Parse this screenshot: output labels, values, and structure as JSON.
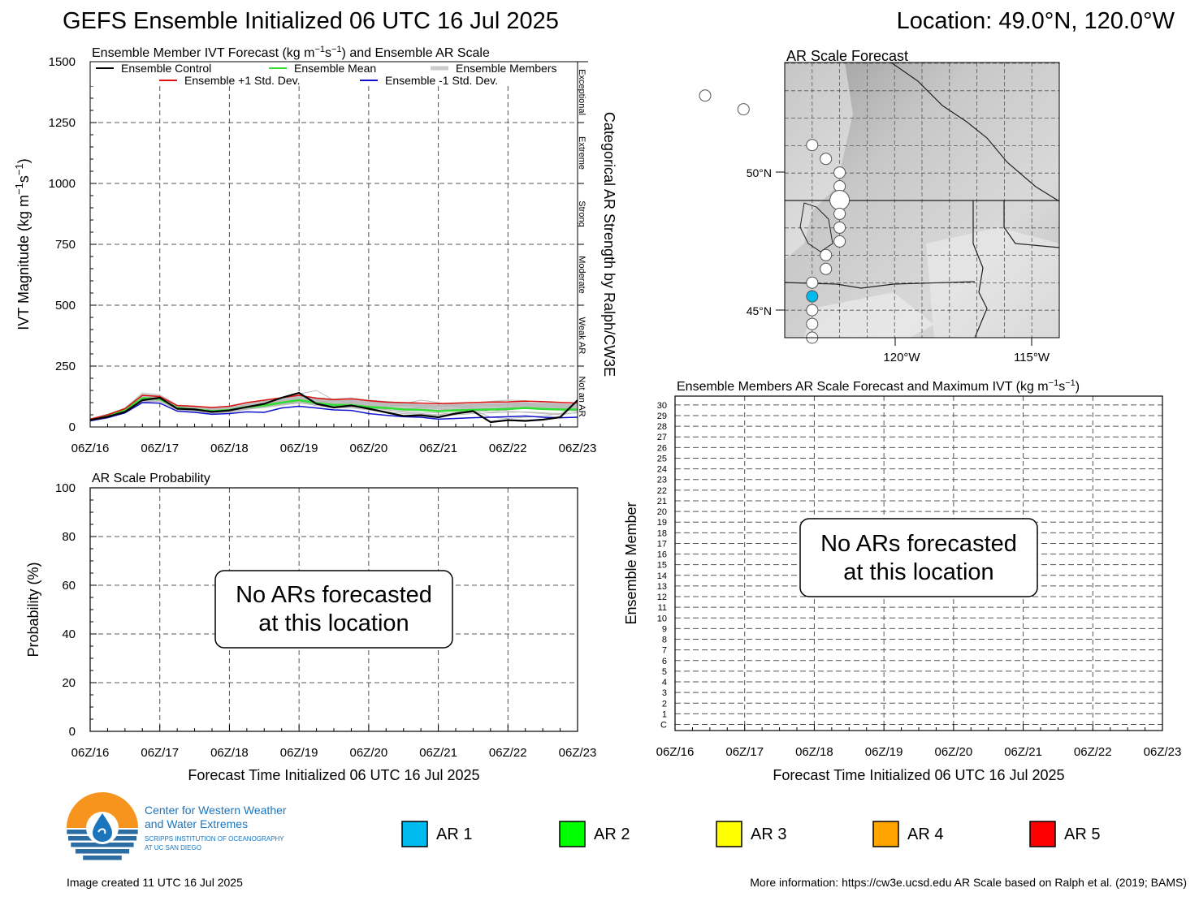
{
  "header": {
    "title": "GEFS Ensemble Initialized 06 UTC 16 Jul 2025",
    "location": "Location: 49.0°N, 120.0°W"
  },
  "x_tick_labels": [
    "06Z/16",
    "06Z/17",
    "06Z/18",
    "06Z/19",
    "06Z/20",
    "06Z/21",
    "06Z/22",
    "06Z/23"
  ],
  "xlabel": "Forecast Time Initialized 06 UTC 16 Jul 2025",
  "no_ar_message": [
    "No ARs forecasted",
    "at this location"
  ],
  "chart_data": [
    {
      "id": "ivt",
      "type": "line",
      "title_parts": [
        "Ensemble Member IVT Forecast (kg m",
        "−1",
        "s",
        "−1",
        ") and Ensemble AR Scale"
      ],
      "ylabel_parts": [
        "IVT Magnitude (kg m",
        "−1",
        "s",
        "−1",
        ")"
      ],
      "ylim": [
        0,
        1500
      ],
      "yticks": [
        0,
        250,
        500,
        750,
        1000,
        1250,
        1500
      ],
      "xlim": [
        0,
        168
      ],
      "grid": true,
      "legend": [
        {
          "label": "Ensemble Control",
          "color": "#000000"
        },
        {
          "label": "Ensemble Mean",
          "color": "#33dd33"
        },
        {
          "label": "Ensemble Members",
          "color": "#bbbbbb"
        },
        {
          "label": "Ensemble +1 Std. Dev.",
          "color": "#dd1111"
        },
        {
          "label": "Ensemble -1 Std. Dev.",
          "color": "#1111cc"
        }
      ],
      "categories_right": {
        "title": "Categorical AR Strength by Ralph/CW3E",
        "bands": [
          {
            "label": "Not an AR",
            "range": [
              0,
              250
            ]
          },
          {
            "label": "Weak AR",
            "range": [
              250,
              500
            ]
          },
          {
            "label": "Moderate",
            "range": [
              500,
              750
            ]
          },
          {
            "label": "Strong",
            "range": [
              750,
              1000
            ]
          },
          {
            "label": "Extreme",
            "range": [
              1000,
              1250
            ]
          },
          {
            "label": "Exceptional",
            "range": [
              1250,
              1500
            ]
          }
        ]
      },
      "x": [
        0,
        6,
        12,
        18,
        24,
        30,
        36,
        42,
        48,
        54,
        60,
        66,
        72,
        78,
        84,
        90,
        96,
        102,
        108,
        114,
        120,
        126,
        132,
        138,
        144,
        150,
        156,
        162,
        168
      ],
      "series": [
        {
          "name": "Ensemble Control",
          "color": "#000000",
          "width": 2.2,
          "values": [
            28,
            42,
            62,
            110,
            120,
            75,
            72,
            62,
            68,
            82,
            95,
            120,
            140,
            95,
            80,
            88,
            75,
            60,
            45,
            48,
            40,
            55,
            65,
            20,
            28,
            25,
            30,
            40,
            110
          ]
        },
        {
          "name": "Ensemble Mean",
          "color": "#33dd33",
          "width": 2.6,
          "values": [
            30,
            45,
            68,
            118,
            115,
            78,
            72,
            65,
            70,
            82,
            88,
            100,
            110,
            98,
            90,
            90,
            82,
            78,
            72,
            70,
            65,
            68,
            70,
            72,
            74,
            78,
            74,
            72,
            72
          ]
        },
        {
          "name": "Ensemble +1 Std. Dev.",
          "color": "#dd1111",
          "width": 1.5,
          "values": [
            32,
            50,
            75,
            130,
            125,
            88,
            85,
            80,
            85,
            100,
            110,
            120,
            130,
            118,
            112,
            115,
            108,
            102,
            100,
            98,
            96,
            98,
            100,
            102,
            103,
            106,
            104,
            101,
            98
          ]
        },
        {
          "name": "Ensemble -1 Std. Dev.",
          "color": "#1111cc",
          "width": 1.5,
          "values": [
            25,
            38,
            58,
            100,
            98,
            65,
            60,
            52,
            55,
            62,
            60,
            78,
            85,
            78,
            70,
            68,
            55,
            48,
            42,
            40,
            32,
            35,
            38,
            40,
            42,
            45,
            40,
            38,
            40
          ]
        }
      ],
      "members": {
        "color": "#bbbbbb",
        "values": [
          [
            27,
            40,
            60,
            108,
            112,
            72,
            70,
            60,
            66,
            80,
            92,
            118,
            135,
            150,
            110,
            95,
            80,
            72,
            60,
            55,
            50,
            60,
            70,
            40,
            35,
            40,
            45,
            55,
            90
          ],
          [
            30,
            44,
            66,
            115,
            118,
            80,
            74,
            66,
            72,
            85,
            90,
            105,
            125,
            100,
            95,
            100,
            95,
            90,
            85,
            80,
            75,
            70,
            68,
            70,
            80,
            90,
            85,
            80,
            75
          ],
          [
            29,
            46,
            70,
            120,
            122,
            78,
            76,
            70,
            74,
            88,
            95,
            108,
            118,
            110,
            100,
            92,
            88,
            85,
            95,
            110,
            100,
            85,
            75,
            60,
            70,
            80,
            75,
            70,
            65
          ],
          [
            31,
            42,
            64,
            112,
            115,
            76,
            70,
            62,
            68,
            78,
            86,
            96,
            105,
            95,
            88,
            85,
            78,
            70,
            65,
            60,
            58,
            55,
            60,
            70,
            65,
            60,
            55,
            50,
            60
          ],
          [
            28,
            48,
            72,
            125,
            120,
            82,
            78,
            72,
            78,
            90,
            100,
            112,
            130,
            120,
            115,
            120,
            110,
            105,
            98,
            92,
            90,
            95,
            100,
            105,
            110,
            108,
            100,
            95,
            92
          ],
          [
            26,
            40,
            58,
            104,
            108,
            70,
            66,
            58,
            62,
            74,
            82,
            92,
            100,
            88,
            80,
            78,
            70,
            62,
            55,
            52,
            48,
            50,
            55,
            58,
            60,
            62,
            58,
            55,
            58
          ],
          [
            32,
            50,
            74,
            130,
            128,
            86,
            82,
            76,
            82,
            96,
            104,
            114,
            122,
            112,
            105,
            110,
            102,
            96,
            90,
            86,
            82,
            84,
            88,
            92,
            95,
            96,
            92,
            88,
            85
          ],
          [
            29,
            44,
            66,
            116,
            114,
            77,
            72,
            66,
            70,
            84,
            92,
            104,
            115,
            105,
            98,
            100,
            95,
            92,
            88,
            85,
            82,
            80,
            78,
            76,
            80,
            85,
            82,
            78,
            76
          ],
          [
            30,
            47,
            68,
            122,
            118,
            80,
            76,
            68,
            74,
            86,
            94,
            106,
            112,
            104,
            96,
            94,
            90,
            88,
            86,
            84,
            80,
            82,
            84,
            86,
            88,
            90,
            86,
            84,
            82
          ],
          [
            28,
            43,
            63,
            110,
            112,
            74,
            70,
            62,
            66,
            80,
            88,
            98,
            108,
            100,
            92,
            90,
            86,
            82,
            80,
            78,
            74,
            76,
            78,
            80,
            82,
            84,
            80,
            78,
            76
          ],
          [
            31,
            49,
            72,
            128,
            124,
            84,
            80,
            74,
            80,
            92,
            100,
            110,
            120,
            112,
            106,
            104,
            100,
            96,
            92,
            88,
            86,
            88,
            90,
            92,
            94,
            96,
            92,
            90,
            88
          ],
          [
            27,
            41,
            61,
            106,
            110,
            73,
            68,
            60,
            64,
            76,
            84,
            94,
            102,
            96,
            88,
            86,
            82,
            78,
            76,
            74,
            70,
            72,
            74,
            76,
            78,
            80,
            76,
            74,
            72
          ],
          [
            33,
            52,
            78,
            140,
            132,
            90,
            86,
            80,
            86,
            100,
            108,
            118,
            128,
            118,
            110,
            108,
            104,
            100,
            96,
            92,
            90,
            92,
            94,
            96,
            98,
            100,
            96,
            94,
            92
          ],
          [
            26,
            39,
            57,
            102,
            106,
            70,
            65,
            56,
            60,
            72,
            80,
            90,
            98,
            92,
            84,
            82,
            78,
            74,
            72,
            70,
            66,
            68,
            70,
            72,
            74,
            76,
            72,
            70,
            68
          ],
          [
            30,
            46,
            69,
            120,
            116,
            79,
            75,
            68,
            73,
            86,
            94,
            106,
            116,
            108,
            100,
            100,
            95,
            92,
            90,
            88,
            85,
            86,
            88,
            90,
            92,
            94,
            90,
            88,
            86
          ],
          [
            29,
            45,
            67,
            118,
            117,
            78,
            73,
            67,
            71,
            84,
            92,
            104,
            114,
            106,
            98,
            98,
            93,
            90,
            88,
            86,
            83,
            84,
            86,
            88,
            90,
            92,
            88,
            86,
            84
          ],
          [
            28,
            42,
            62,
            112,
            113,
            75,
            71,
            63,
            67,
            80,
            88,
            100,
            110,
            102,
            94,
            94,
            89,
            86,
            84,
            82,
            79,
            80,
            82,
            84,
            86,
            88,
            84,
            82,
            80
          ],
          [
            32,
            51,
            76,
            134,
            128,
            88,
            84,
            78,
            84,
            98,
            106,
            116,
            126,
            116,
            108,
            106,
            102,
            98,
            94,
            90,
            88,
            90,
            92,
            94,
            96,
            98,
            94,
            92,
            90
          ],
          [
            27,
            40,
            59,
            105,
            109,
            72,
            67,
            59,
            63,
            75,
            83,
            93,
            101,
            95,
            87,
            85,
            81,
            77,
            75,
            73,
            69,
            71,
            73,
            75,
            77,
            79,
            75,
            73,
            71
          ],
          [
            31,
            48,
            71,
            126,
            122,
            83,
            79,
            73,
            79,
            91,
            99,
            109,
            119,
            111,
            104,
            103,
            99,
            95,
            91,
            87,
            85,
            87,
            89,
            91,
            93,
            95,
            91,
            89,
            87
          ]
        ]
      }
    },
    {
      "id": "prob",
      "type": "line",
      "title": "AR Scale Probability",
      "ylabel": "Probability (%)",
      "ylim": [
        0,
        100
      ],
      "yticks": [
        0,
        20,
        40,
        60,
        80,
        100
      ],
      "xlim": [
        0,
        168
      ],
      "grid": true,
      "series": []
    },
    {
      "id": "members_ar",
      "type": "heatmap",
      "title_parts": [
        "Ensemble Members AR Scale Forecast and Maximum IVT (kg m",
        "−1",
        "s",
        "−1",
        ")"
      ],
      "ylabel": "Ensemble Member",
      "ytick_labels": [
        "C",
        "1",
        "2",
        "3",
        "4",
        "5",
        "6",
        "7",
        "8",
        "9",
        "10",
        "11",
        "12",
        "13",
        "14",
        "15",
        "16",
        "17",
        "18",
        "19",
        "20",
        "21",
        "22",
        "23",
        "24",
        "25",
        "26",
        "27",
        "28",
        "29",
        "30"
      ],
      "xlim": [
        0,
        168
      ],
      "grid": true,
      "cells": []
    },
    {
      "id": "map",
      "type": "scatter",
      "title": "AR Scale Forecast",
      "lon_labels": [
        "120°W",
        "115°W"
      ],
      "lat_labels": [
        "50°N",
        "45°N"
      ],
      "lon_range": [
        -122,
        -112
      ],
      "lat_range": [
        44,
        54
      ],
      "points": [
        {
          "lon": -124.9,
          "lat": 52.8,
          "r": 7,
          "color": "#ffffff"
        },
        {
          "lon": -123.5,
          "lat": 52.3,
          "r": 7,
          "color": "#ffffff"
        },
        {
          "lon": -121.0,
          "lat": 51.0,
          "r": 7,
          "color": "#ffffff"
        },
        {
          "lon": -120.5,
          "lat": 50.5,
          "r": 7,
          "color": "#ffffff"
        },
        {
          "lon": -120.0,
          "lat": 50.0,
          "r": 7,
          "color": "#ffffff"
        },
        {
          "lon": -120.0,
          "lat": 49.5,
          "r": 7,
          "color": "#ffffff"
        },
        {
          "lon": -120.0,
          "lat": 49.0,
          "r": 12,
          "color": "#ffffff"
        },
        {
          "lon": -120.0,
          "lat": 48.5,
          "r": 7,
          "color": "#ffffff"
        },
        {
          "lon": -120.0,
          "lat": 48.0,
          "r": 7,
          "color": "#ffffff"
        },
        {
          "lon": -120.0,
          "lat": 47.5,
          "r": 7,
          "color": "#ffffff"
        },
        {
          "lon": -120.5,
          "lat": 47.0,
          "r": 7,
          "color": "#ffffff"
        },
        {
          "lon": -120.5,
          "lat": 46.5,
          "r": 7,
          "color": "#ffffff"
        },
        {
          "lon": -121.0,
          "lat": 46.0,
          "r": 7,
          "color": "#ffffff"
        },
        {
          "lon": -121.0,
          "lat": 45.5,
          "r": 7,
          "color": "#00bbee"
        },
        {
          "lon": -121.0,
          "lat": 45.0,
          "r": 7,
          "color": "#ffffff"
        },
        {
          "lon": -121.0,
          "lat": 44.5,
          "r": 7,
          "color": "#ffffff"
        },
        {
          "lon": -121.0,
          "lat": 44.0,
          "r": 7,
          "color": "#ffffff"
        }
      ]
    }
  ],
  "ar_legend": [
    {
      "label": "AR 1",
      "color": "#00bbee"
    },
    {
      "label": "AR 2",
      "color": "#00ff00"
    },
    {
      "label": "AR 3",
      "color": "#ffff00"
    },
    {
      "label": "AR 4",
      "color": "#ffa500"
    },
    {
      "label": "AR 5",
      "color": "#ff0000"
    }
  ],
  "logo": {
    "line1": "Center for Western Weather",
    "line2": "and Water Extremes",
    "line3": "SCRIPPS INSTITUTION OF OCEANOGRAPHY",
    "line4": "AT UC SAN DIEGO",
    "colors": {
      "orange": "#f7941d",
      "blue": "#1b75bc",
      "navy": "#2b6ca3"
    }
  },
  "footer": {
    "created": "Image created 11 UTC 16 Jul 2025",
    "more_info": "More information: https://cw3e.ucsd.edu AR Scale based on Ralph et al. (2019; BAMS)"
  }
}
